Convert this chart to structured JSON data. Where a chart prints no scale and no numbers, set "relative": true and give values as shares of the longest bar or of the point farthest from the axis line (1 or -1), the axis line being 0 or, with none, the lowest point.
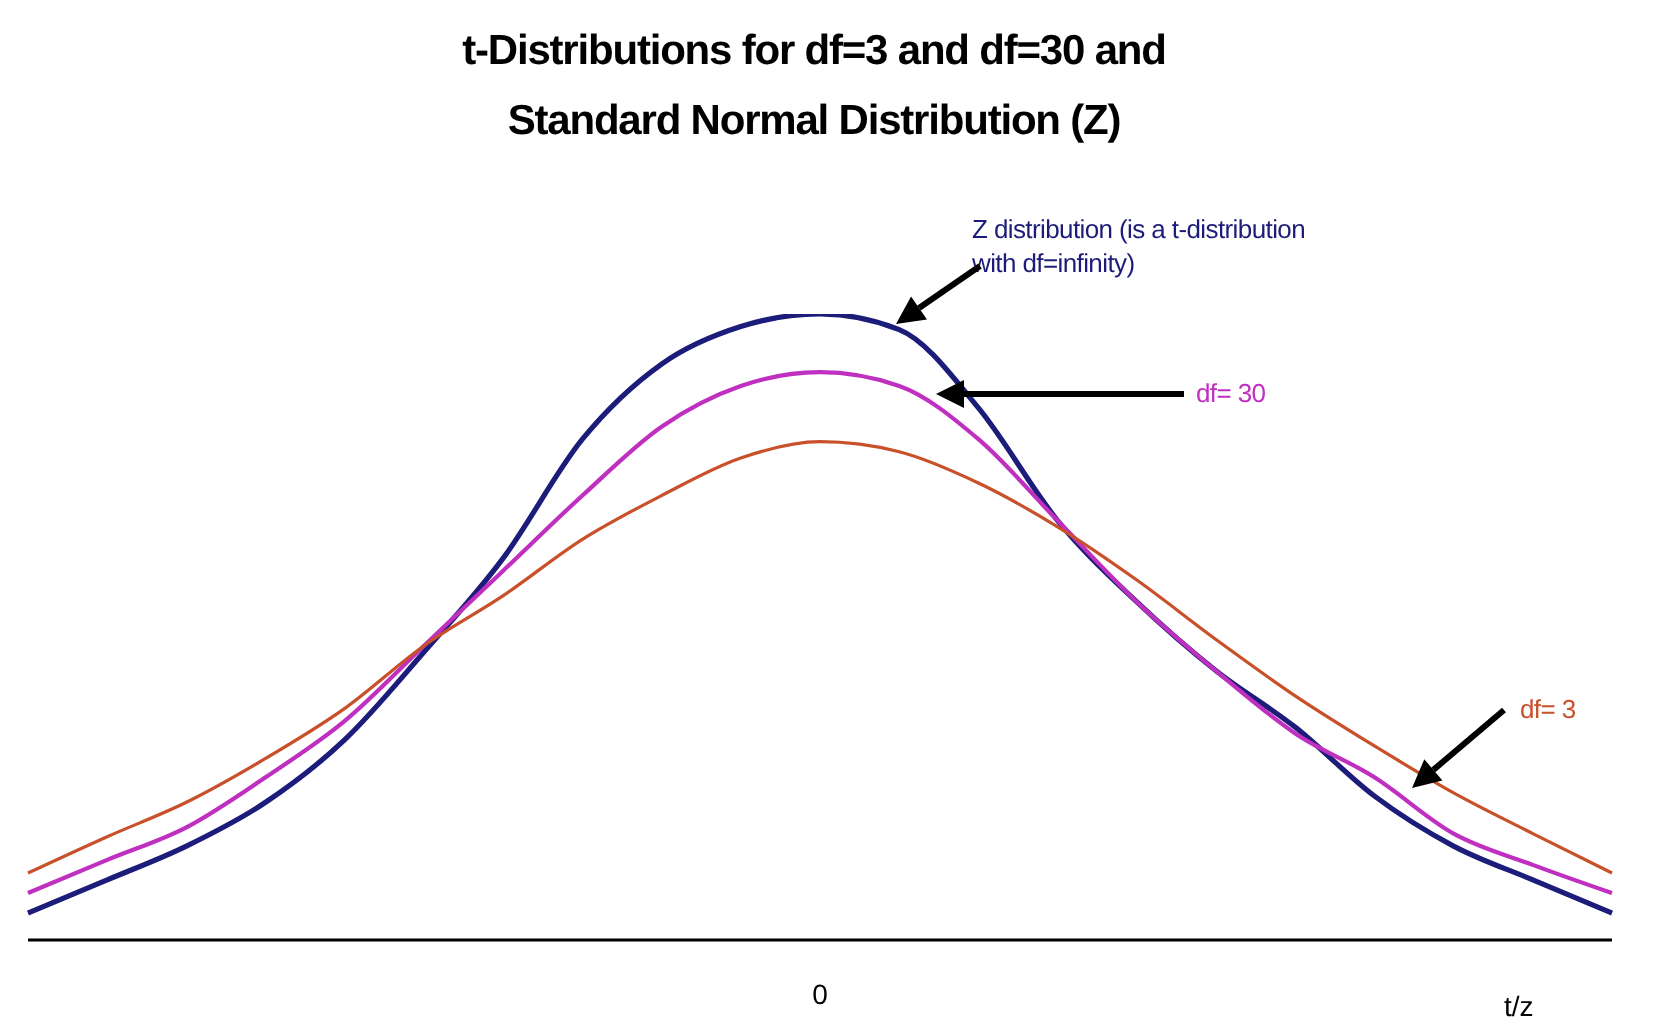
{
  "chart_data": {
    "type": "line",
    "relative": true,
    "title": "t-Distributions for df=3 and df=30 and\nStandard Normal Distribution (Z)",
    "xlabel": "t/z",
    "legend": false,
    "grid": false,
    "marker": "none",
    "line_style": "solid",
    "categories": [
      null,
      null,
      null,
      null,
      null,
      null,
      null,
      null,
      null,
      null,
      null,
      null,
      null,
      null,
      null,
      null,
      null,
      null,
      null,
      null,
      null
    ],
    "annotations": [
      "0"
    ],
    "series": [
      {
        "name": "Z distribution (is  a t-distribution\nwith df=infinity)",
        "color": "#1c1c7a",
        "values": [
          0.043,
          0.096,
          0.15,
          0.22,
          0.32,
          0.46,
          0.61,
          0.8,
          0.92,
          0.98,
          1,
          0.975,
          0.85,
          0.67,
          0.54,
          0.43,
          0.34,
          0.23,
          0.15,
          0.096,
          0.043
        ]
      },
      {
        "name": "df= 30",
        "color": "#c030c0",
        "values": [
          0.075,
          0.128,
          0.18,
          0.26,
          0.35,
          0.47,
          0.59,
          0.71,
          0.82,
          0.885,
          0.907,
          0.885,
          0.8,
          0.67,
          0.54,
          0.43,
          0.33,
          0.26,
          0.17,
          0.12,
          0.075
        ]
      },
      {
        "name": "df= 3",
        "color": "#c8502a",
        "values": [
          0.107,
          0.165,
          0.22,
          0.29,
          0.37,
          0.47,
          0.55,
          0.64,
          0.71,
          0.77,
          0.796,
          0.78,
          0.73,
          0.66,
          0.575,
          0.48,
          0.39,
          0.31,
          0.235,
          0.17,
          0.107
        ]
      }
    ]
  }
}
